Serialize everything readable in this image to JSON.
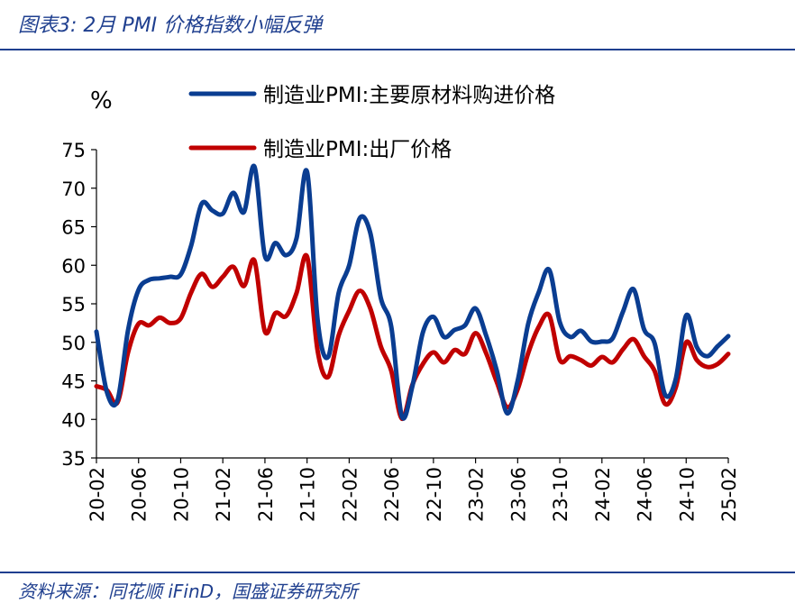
{
  "figure_title": "图表3: 2月 PMI 价格指数小幅反弹",
  "source": "资料来源：同花顺 iFinD，国盛证券研究所",
  "chart_data": {
    "type": "line",
    "unit": "%",
    "ylim": [
      35,
      75
    ],
    "yticks": [
      35,
      40,
      45,
      50,
      55,
      60,
      65,
      70,
      75
    ],
    "xticks": [
      "20-02",
      "20-06",
      "20-10",
      "21-02",
      "21-06",
      "21-10",
      "22-02",
      "22-06",
      "22-10",
      "23-02",
      "23-06",
      "23-10",
      "24-02",
      "24-06",
      "24-10",
      "25-02"
    ],
    "x": [
      "20-02",
      "20-03",
      "20-04",
      "20-05",
      "20-06",
      "20-07",
      "20-08",
      "20-09",
      "20-10",
      "20-11",
      "20-12",
      "21-01",
      "21-02",
      "21-03",
      "21-04",
      "21-05",
      "21-06",
      "21-07",
      "21-08",
      "21-09",
      "21-10",
      "21-11",
      "21-12",
      "22-01",
      "22-02",
      "22-03",
      "22-04",
      "22-05",
      "22-06",
      "22-07",
      "22-08",
      "22-09",
      "22-10",
      "22-11",
      "22-12",
      "23-01",
      "23-02",
      "23-03",
      "23-04",
      "23-05",
      "23-06",
      "23-07",
      "23-08",
      "23-09",
      "23-10",
      "23-11",
      "23-12",
      "24-01",
      "24-02",
      "24-03",
      "24-04",
      "24-05",
      "24-06",
      "24-07",
      "24-08",
      "24-09",
      "24-10",
      "24-11",
      "24-12",
      "25-01",
      "25-02"
    ],
    "legend_position": "top",
    "colors": {
      "input": "#0a3d91",
      "output": "#c00000",
      "axis": "#000000"
    },
    "series": [
      {
        "name": "制造业PMI:主要原材料购进价格",
        "color": "#0a3d91",
        "values": [
          51.4,
          43.5,
          42.5,
          51.6,
          56.8,
          58.1,
          58.3,
          58.5,
          58.8,
          62.6,
          68.0,
          67.1,
          66.7,
          69.4,
          66.9,
          72.8,
          61.2,
          62.9,
          61.3,
          63.5,
          72.1,
          52.9,
          48.1,
          56.4,
          60.0,
          66.1,
          64.2,
          55.8,
          52.0,
          40.4,
          44.3,
          51.3,
          53.3,
          50.7,
          51.6,
          52.2,
          54.4,
          50.9,
          46.4,
          40.8,
          45.0,
          52.4,
          56.5,
          59.4,
          52.6,
          50.7,
          51.5,
          50.1,
          50.1,
          50.5,
          54.0,
          56.9,
          51.7,
          49.9,
          43.2,
          45.2,
          53.5,
          49.4,
          48.2,
          49.5,
          50.8
        ]
      },
      {
        "name": "制造业PMI:出厂价格",
        "color": "#c00000",
        "values": [
          44.3,
          43.8,
          42.2,
          48.7,
          52.4,
          52.2,
          53.2,
          52.5,
          53.1,
          56.5,
          58.9,
          57.2,
          58.5,
          59.8,
          57.3,
          60.6,
          51.4,
          53.8,
          53.4,
          56.4,
          61.1,
          48.9,
          45.5,
          50.9,
          54.1,
          56.7,
          54.4,
          49.5,
          46.3,
          40.1,
          44.5,
          47.2,
          48.7,
          47.4,
          49.0,
          48.5,
          51.2,
          48.6,
          44.9,
          41.6,
          43.9,
          48.6,
          52.0,
          53.5,
          47.7,
          48.2,
          47.7,
          47.0,
          48.1,
          47.4,
          49.1,
          50.4,
          48.2,
          46.3,
          42.0,
          44.1,
          50.0,
          47.7,
          46.8,
          47.2,
          48.5
        ]
      }
    ]
  }
}
